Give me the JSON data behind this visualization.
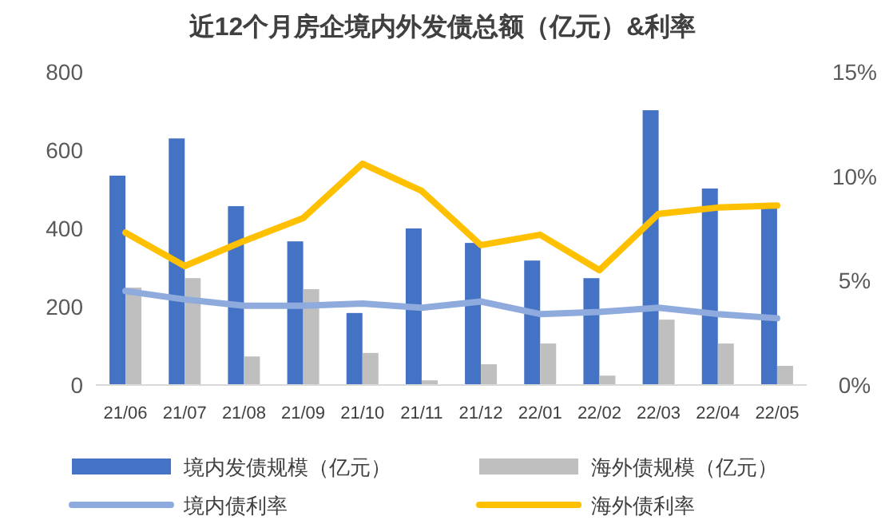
{
  "chart_data": {
    "type": "bar",
    "title": "近12个月房企境内外发债总额（亿元）&利率",
    "categories": [
      "21/06",
      "21/07",
      "21/08",
      "21/09",
      "21/10",
      "21/11",
      "21/12",
      "22/01",
      "22/02",
      "22/03",
      "22/04",
      "22/05"
    ],
    "series": [
      {
        "name": "境内发债规模（亿元）",
        "color": "#4472c4",
        "values": [
          535,
          630,
          457,
          367,
          184,
          400,
          363,
          318,
          273,
          702,
          502,
          453
        ]
      },
      {
        "name": "海外债规模（亿元）",
        "color": "#bfbfbf",
        "values": [
          249,
          273,
          73,
          245,
          82,
          12,
          53,
          106,
          24,
          167,
          106,
          49
        ]
      },
      {
        "name": "境内债利率",
        "type": "line",
        "axis": "y2",
        "color": "#8faadc",
        "values": [
          4.5,
          4.1,
          3.8,
          3.8,
          3.9,
          3.7,
          4.0,
          3.4,
          3.5,
          3.7,
          3.4,
          3.2
        ]
      },
      {
        "name": "海外债利率",
        "type": "line",
        "axis": "y2",
        "color": "#ffc000",
        "values": [
          7.3,
          5.7,
          6.9,
          8.0,
          10.6,
          9.3,
          6.7,
          7.2,
          5.5,
          8.2,
          8.5,
          8.6
        ]
      }
    ],
    "ylim": [
      0,
      800
    ],
    "yticks": [
      0,
      200,
      400,
      600,
      800
    ],
    "y2lim": [
      0,
      15
    ],
    "y2ticks": [
      {
        "value": 0,
        "label": "0%"
      },
      {
        "value": 5,
        "label": "5%"
      },
      {
        "value": 10,
        "label": "10%"
      },
      {
        "value": 15,
        "label": "15%"
      }
    ],
    "grid": false,
    "legend": "bottom",
    "marker": "none",
    "line_style": "solid"
  }
}
